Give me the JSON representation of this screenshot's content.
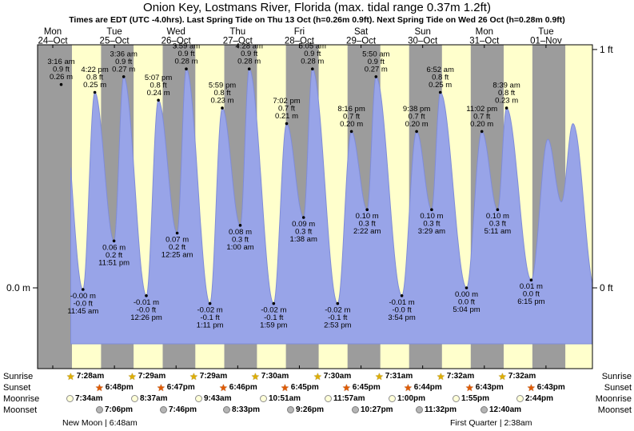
{
  "title": "Onion Key, Lostmans River, Florida (max. tidal range 0.37m 1.2ft)",
  "subtitle": "Times are EDT (UTC -4.0hrs). Last Spring Tide on Thu 13 Oct (h=0.26m 0.9ft). Next Spring Tide on Wed 26 Oct (h=0.28m 0.9ft)",
  "astro": {
    "sunrise_label": "Sunrise",
    "sunset_label": "Sunset",
    "moonrise_label": "Moonrise",
    "moonset_label": "Moonset",
    "new_moon": "New Moon | 6:48am",
    "first_quarter": "First Quarter | 2:38am"
  },
  "chart_data": {
    "type": "area",
    "title": "Onion Key, Lostmans River, Florida (max. tidal range 0.37m 1.2ft)",
    "x_axis": "Days Mon 24-Oct through Tue 01-Nov, hours t measured from Mon 24-Oct 00:00 EDT",
    "y_axis": {
      "left": "0.0 m",
      "right_top": "1 ft",
      "right_bottom": "0 ft"
    },
    "colors": {
      "day_band": "#ffffcc",
      "night_band": "#9c9c9c",
      "tide_fill": "#98a4e8",
      "tide_stroke": "#7f8cd8",
      "date_red": "#d40000"
    },
    "days": [
      {
        "dow": "Mon",
        "date": "24–Oct",
        "t": 0,
        "sunrise": "7:28am",
        "sunrise_t": 7.47,
        "sunset": "6:48pm",
        "sunset_t": 18.8,
        "moonrise": "7:34am",
        "moonrise_t": 7.57,
        "moonset": "7:06pm",
        "moonset_t": 19.1
      },
      {
        "dow": "Tue",
        "date": "25–Oct",
        "t": 24,
        "sunrise": "7:29am",
        "sunrise_t": 31.48,
        "sunset": "6:47pm",
        "sunset_t": 42.78,
        "moonrise": "8:37am",
        "moonrise_t": 32.62,
        "moonset": "7:46pm",
        "moonset_t": 43.77
      },
      {
        "dow": "Wed",
        "date": "26–Oct",
        "t": 48,
        "sunrise": "7:29am",
        "sunrise_t": 55.48,
        "sunset": "6:46pm",
        "sunset_t": 66.77,
        "moonrise": "9:43am",
        "moonrise_t": 57.72,
        "moonset": "8:33pm",
        "moonset_t": 68.55
      },
      {
        "dow": "Thu",
        "date": "27–Oct",
        "t": 72,
        "sunrise": "7:30am",
        "sunrise_t": 79.5,
        "sunset": "6:45pm",
        "sunset_t": 90.75,
        "moonrise": "10:51am",
        "moonrise_t": 82.85,
        "moonset": "9:26pm",
        "moonset_t": 93.43
      },
      {
        "dow": "Fri",
        "date": "28–Oct",
        "t": 96,
        "sunrise": "7:30am",
        "sunrise_t": 103.5,
        "sunset": "6:45pm",
        "sunset_t": 114.75,
        "moonrise": "11:57am",
        "moonrise_t": 107.95,
        "moonset": "10:27pm",
        "moonset_t": 118.45
      },
      {
        "dow": "Sat",
        "date": "29–Oct",
        "t": 120,
        "sunrise": "7:31am",
        "sunrise_t": 127.52,
        "sunset": "6:44pm",
        "sunset_t": 138.73,
        "moonrise": "1:00pm",
        "moonrise_t": 133.0,
        "moonset": "11:32pm",
        "moonset_t": 143.53
      },
      {
        "dow": "Sun",
        "date": "30–Oct",
        "t": 144,
        "sunrise": "7:32am",
        "sunrise_t": 151.53,
        "sunset": "6:43pm",
        "sunset_t": 162.72,
        "moonrise": "1:55pm",
        "moonrise_t": 157.92,
        "moonset": "",
        "moonset_t": null
      },
      {
        "dow": "Mon",
        "date": "31–Oct",
        "t": 168,
        "sunrise": "7:32am",
        "sunrise_t": 175.53,
        "sunset": "6:43pm",
        "sunset_t": 186.72,
        "moonrise": "2:44pm",
        "moonrise_t": 182.73,
        "moonset": "12:40am",
        "moonset_t": 168.67
      },
      {
        "dow": "Tue",
        "date": "01–Nov",
        "t": 192,
        "sunrise": "",
        "sunrise_t": 199.55,
        "sunset": "",
        "sunset_t": 210.7,
        "moonrise": "",
        "moonrise_t": null,
        "moonset": "",
        "moonset_t": null
      }
    ],
    "tides": [
      {
        "type": "high",
        "time": "3:16 am",
        "ft": "0.9 ft",
        "m_label": "0.26 m",
        "t": 3.27,
        "m": 0.26
      },
      {
        "type": "low",
        "time": "11:45 am",
        "ft": "-0.0 ft",
        "m_label": "-0.00 m",
        "t": 11.75,
        "m": -0.002
      },
      {
        "type": "high",
        "time": "4:22 pm",
        "ft": "0.8 ft",
        "m_label": "0.25 m",
        "t": 16.37,
        "m": 0.25
      },
      {
        "type": "low",
        "time": "11:51 pm",
        "ft": "0.2 ft",
        "m_label": "0.06 m",
        "t": 23.85,
        "m": 0.06
      },
      {
        "type": "high",
        "time": "3:36 am",
        "ft": "0.9 ft",
        "m_label": "0.27 m",
        "t": 27.6,
        "m": 0.27
      },
      {
        "type": "low",
        "time": "12:26 pm",
        "ft": "-0.0 ft",
        "m_label": "-0.01 m",
        "t": 36.43,
        "m": -0.01
      },
      {
        "type": "high",
        "time": "5:07 pm",
        "ft": "0.8 ft",
        "m_label": "0.24 m",
        "t": 41.12,
        "m": 0.24
      },
      {
        "type": "low",
        "time": "12:25 am",
        "ft": "0.2 ft",
        "m_label": "0.07 m",
        "t": 48.42,
        "m": 0.07
      },
      {
        "type": "high",
        "time": "3:59 am",
        "ft": "0.9 ft",
        "m_label": "0.28 m",
        "t": 51.98,
        "m": 0.28
      },
      {
        "type": "low",
        "time": "1:11 pm",
        "ft": "-0.1 ft",
        "m_label": "-0.02 m",
        "t": 61.18,
        "m": -0.02
      },
      {
        "type": "high",
        "time": "5:59 pm",
        "ft": "0.8 ft",
        "m_label": "0.23 m",
        "t": 65.98,
        "m": 0.23
      },
      {
        "type": "low",
        "time": "1:00 am",
        "ft": "0.3 ft",
        "m_label": "0.08 m",
        "t": 73.0,
        "m": 0.08
      },
      {
        "type": "high",
        "time": "4:28 am",
        "ft": "0.9 ft",
        "m_label": "0.28 m",
        "t": 76.47,
        "m": 0.28
      },
      {
        "type": "low",
        "time": "1:59 pm",
        "ft": "-0.1 ft",
        "m_label": "-0.02 m",
        "t": 85.98,
        "m": -0.02
      },
      {
        "type": "high",
        "time": "7:02 pm",
        "ft": "0.7 ft",
        "m_label": "0.21 m",
        "t": 91.03,
        "m": 0.21
      },
      {
        "type": "low",
        "time": "1:38 am",
        "ft": "0.3 ft",
        "m_label": "0.09 m",
        "t": 97.63,
        "m": 0.09
      },
      {
        "type": "high",
        "time": "5:05 am",
        "ft": "0.9 ft",
        "m_label": "0.28 m",
        "t": 101.08,
        "m": 0.28
      },
      {
        "type": "low",
        "time": "2:53 pm",
        "ft": "-0.1 ft",
        "m_label": "-0.02 m",
        "t": 110.88,
        "m": -0.02
      },
      {
        "type": "high",
        "time": "8:16 pm",
        "ft": "0.7 ft",
        "m_label": "0.20 m",
        "t": 116.27,
        "m": 0.2
      },
      {
        "type": "low",
        "time": "2:22 am",
        "ft": "0.3 ft",
        "m_label": "0.10 m",
        "t": 122.37,
        "m": 0.1
      },
      {
        "type": "high",
        "time": "5:50 am",
        "ft": "0.9 ft",
        "m_label": "0.27 m",
        "t": 125.83,
        "m": 0.27
      },
      {
        "type": "low",
        "time": "3:54 pm",
        "ft": "-0.0 ft",
        "m_label": "-0.01 m",
        "t": 135.9,
        "m": -0.01
      },
      {
        "type": "high",
        "time": "9:38 pm",
        "ft": "0.7 ft",
        "m_label": "0.20 m",
        "t": 141.63,
        "m": 0.2
      },
      {
        "type": "low",
        "time": "3:29 am",
        "ft": "0.3 ft",
        "m_label": "0.10 m",
        "t": 147.48,
        "m": 0.1
      },
      {
        "type": "high",
        "time": "6:52 am",
        "ft": "0.8 ft",
        "m_label": "0.25 m",
        "t": 150.87,
        "m": 0.25
      },
      {
        "type": "low",
        "time": "5:04 pm",
        "ft": "0.0 ft",
        "m_label": "0.00 m",
        "t": 161.07,
        "m": 0.0
      },
      {
        "type": "high",
        "time": "11:02 pm",
        "ft": "0.7 ft",
        "m_label": "0.20 m",
        "t": 167.03,
        "m": 0.2
      },
      {
        "type": "low",
        "time": "5:11 am",
        "ft": "0.3 ft",
        "m_label": "0.10 m",
        "t": 173.18,
        "m": 0.1
      },
      {
        "type": "high",
        "time": "8:39 am",
        "ft": "0.8 ft",
        "m_label": "0.23 m",
        "t": 176.65,
        "m": 0.23
      },
      {
        "type": "low",
        "time": "6:15 pm",
        "ft": "0.0 ft",
        "m_label": "0.01 m",
        "t": 186.25,
        "m": 0.01
      }
    ],
    "curve": {
      "start_t": 7.0,
      "pre": [
        {
          "t": -1.3,
          "m": 0.05
        }
      ],
      "post": [
        {
          "t": 192.75,
          "m": 0.19
        },
        {
          "t": 198.0,
          "m": 0.11
        },
        {
          "t": 202.5,
          "m": 0.21
        },
        {
          "t": 211.0,
          "m": 0.0
        }
      ]
    }
  }
}
